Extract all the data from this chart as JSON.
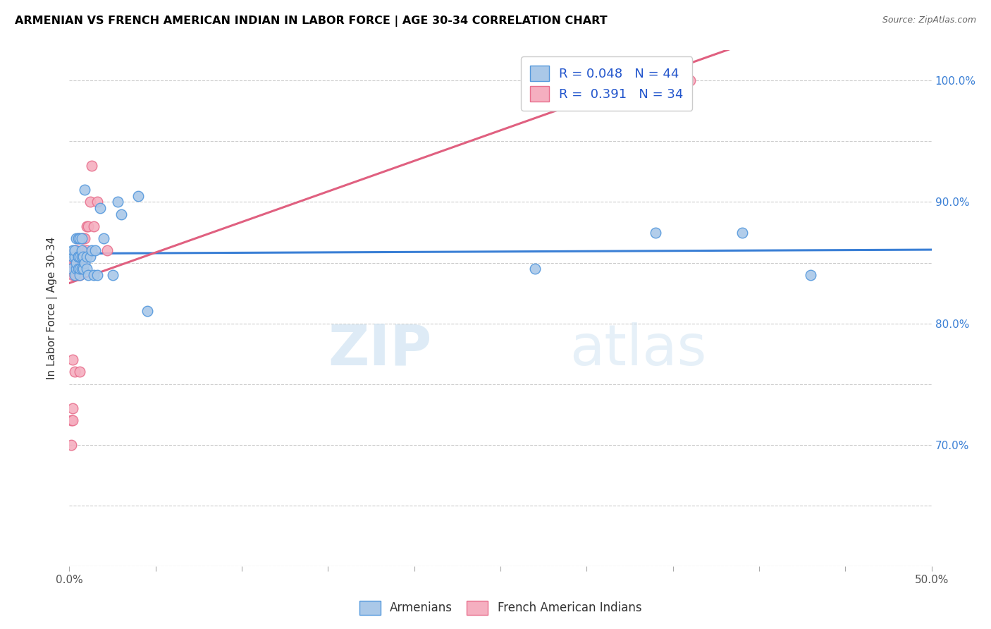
{
  "title": "ARMENIAN VS FRENCH AMERICAN INDIAN IN LABOR FORCE | AGE 30-34 CORRELATION CHART",
  "source": "Source: ZipAtlas.com",
  "ylabel": "In Labor Force | Age 30-34",
  "x_min": 0.0,
  "x_max": 0.5,
  "y_min": 0.6,
  "y_max": 1.025,
  "watermark": "ZIPatlas",
  "armenian_color": "#aac8e8",
  "french_color": "#f5afc0",
  "armenian_edge_color": "#5599dd",
  "french_edge_color": "#e8708e",
  "armenian_line_color": "#3a7fd5",
  "french_line_color": "#e06080",
  "legend_R_armenian": "R = 0.048",
  "legend_N_armenian": "N = 44",
  "legend_R_french": "R =  0.391",
  "legend_N_french": "N = 34",
  "armenian_x": [
    0.001,
    0.002,
    0.002,
    0.003,
    0.003,
    0.003,
    0.004,
    0.004,
    0.004,
    0.005,
    0.005,
    0.005,
    0.005,
    0.006,
    0.006,
    0.006,
    0.006,
    0.007,
    0.007,
    0.007,
    0.007,
    0.008,
    0.008,
    0.009,
    0.009,
    0.01,
    0.01,
    0.011,
    0.012,
    0.013,
    0.014,
    0.015,
    0.016,
    0.018,
    0.02,
    0.025,
    0.028,
    0.03,
    0.04,
    0.045,
    0.27,
    0.34,
    0.39,
    0.43
  ],
  "armenian_y": [
    0.845,
    0.855,
    0.86,
    0.84,
    0.855,
    0.86,
    0.845,
    0.85,
    0.87,
    0.845,
    0.855,
    0.855,
    0.87,
    0.84,
    0.845,
    0.855,
    0.87,
    0.845,
    0.855,
    0.86,
    0.87,
    0.845,
    0.855,
    0.91,
    0.85,
    0.845,
    0.855,
    0.84,
    0.855,
    0.86,
    0.84,
    0.86,
    0.84,
    0.895,
    0.87,
    0.84,
    0.9,
    0.89,
    0.905,
    0.81,
    0.845,
    0.875,
    0.875,
    0.84
  ],
  "french_x": [
    0.001,
    0.001,
    0.002,
    0.002,
    0.002,
    0.002,
    0.002,
    0.003,
    0.003,
    0.003,
    0.003,
    0.004,
    0.004,
    0.004,
    0.005,
    0.005,
    0.005,
    0.006,
    0.006,
    0.007,
    0.007,
    0.007,
    0.008,
    0.008,
    0.009,
    0.01,
    0.01,
    0.011,
    0.012,
    0.013,
    0.014,
    0.016,
    0.022,
    0.36
  ],
  "french_y": [
    0.7,
    0.72,
    0.72,
    0.73,
    0.77,
    0.84,
    0.85,
    0.84,
    0.85,
    0.86,
    0.76,
    0.84,
    0.85,
    0.86,
    0.84,
    0.855,
    0.87,
    0.76,
    0.84,
    0.85,
    0.855,
    0.87,
    0.86,
    0.87,
    0.87,
    0.86,
    0.88,
    0.88,
    0.9,
    0.93,
    0.88,
    0.9,
    0.86,
    1.0
  ]
}
